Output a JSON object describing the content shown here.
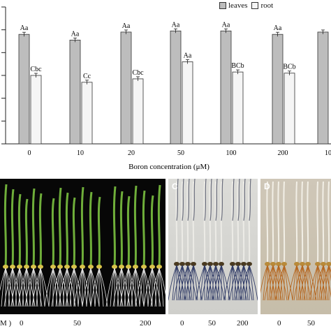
{
  "chart_data": {
    "type": "bar",
    "categories": [
      "0",
      "10",
      "20",
      "50",
      "100",
      "200",
      "10"
    ],
    "series": [
      {
        "name": "leaves",
        "values": [
          4.8,
          4.55,
          4.9,
          4.95,
          4.95,
          4.8,
          4.9
        ],
        "labels": [
          "Aa",
          "Aa",
          "Aa",
          "Aa",
          "Aa",
          "Aa",
          ""
        ]
      },
      {
        "name": "root",
        "values": [
          3.0,
          2.7,
          2.85,
          3.6,
          3.15,
          3.1,
          null
        ],
        "labels": [
          "Cbc",
          "Cc",
          "Cbc",
          "Aa",
          "BCb",
          "BCb",
          ""
        ]
      }
    ],
    "xlabel": "Boron concentration (μM)",
    "ylim": [
      0,
      6
    ],
    "legend": "top-right",
    "colors": {
      "leaves": "#bdbdbd",
      "root": "#f5f5f5"
    }
  },
  "photos": {
    "panel_c": {
      "label": "C",
      "ticks": [
        "0",
        "50",
        "200"
      ]
    },
    "panel_d": {
      "label": "D",
      "ticks": [
        "0",
        "50"
      ]
    },
    "panel_b": {
      "prefix": "M )",
      "ticks": [
        "0",
        "50",
        "200"
      ]
    }
  }
}
